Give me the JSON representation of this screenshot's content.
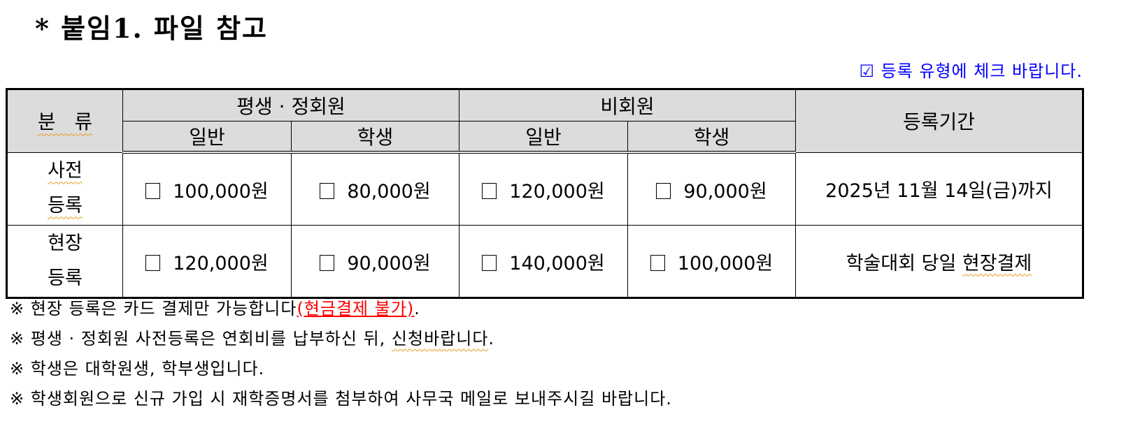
{
  "title": "* 붙임1. 파일 참고",
  "hint": "☑ 등록 유형에 체크 바랍니다.",
  "table": {
    "category": "분   류",
    "groups": [
      "평생 · 정회원",
      "비회원"
    ],
    "period_header": "등록기간",
    "sub": [
      "일반",
      "학생",
      "일반",
      "학생"
    ],
    "rows": [
      {
        "label1": "사전",
        "label2": "등록",
        "prices": [
          "100,000원",
          "80,000원",
          "120,000원",
          "90,000원"
        ],
        "period": "2025년 11월 14일(금)까지"
      },
      {
        "label1": "현장",
        "label2": "등록",
        "prices": [
          "120,000원",
          "90,000원",
          "140,000원",
          "100,000원"
        ],
        "period_a": "학술대회 당일 ",
        "period_b": "현장결제"
      }
    ]
  },
  "notes": {
    "n1": "※ 현장 등록은 카드 결제만 가능합니다",
    "n1_red": "(현금결제 불가)",
    "n1_end": ".",
    "n2a": "※ 평생 · 정회원 사전등록은 연회비를 납부하신 뒤, ",
    "n2b": "신청바랍니다",
    "n2c": ".",
    "n3": "※ 학생은 대학원생, 학부생입니다.",
    "n4": "※ 학생회원으로 신규 가입 시 재학증명서를 첨부하여 사무국 메일로 보내주시길 바랍니다."
  }
}
